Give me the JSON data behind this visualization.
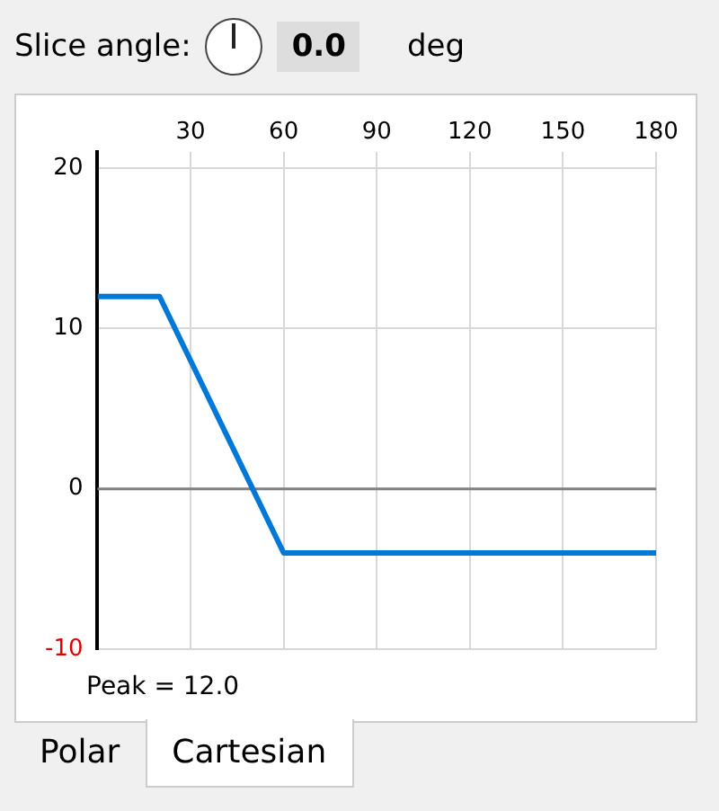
{
  "chart_data": {
    "type": "line",
    "x": [
      0,
      20,
      60,
      180
    ],
    "series": [
      {
        "color": "#0078d7",
        "values": [
          12,
          12,
          -4,
          -4
        ]
      }
    ],
    "xlim": [
      0,
      180
    ],
    "xticks": [
      {
        "value": 0,
        "label": null
      },
      30,
      60,
      90,
      120,
      150,
      180
    ],
    "ylim": [
      -10,
      21
    ],
    "yticks": [
      -10,
      0,
      10,
      20
    ],
    "grid": true,
    "legend": false,
    "marker": "none",
    "line_style": "solid",
    "ref_lines": [
      {
        "axis": "y",
        "value": 0,
        "color": "#808080"
      }
    ],
    "annotations": [
      "Peak = 12.0",
      "Slice angle:",
      "0.0",
      "deg",
      "Polar",
      "Cartesian"
    ]
  }
}
